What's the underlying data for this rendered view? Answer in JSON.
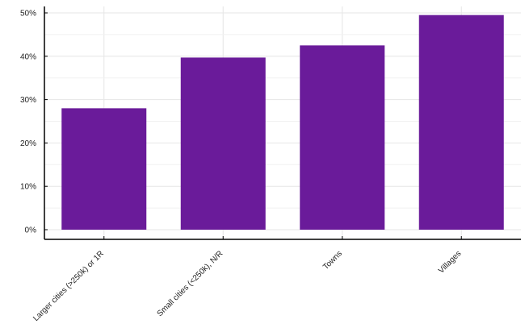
{
  "chart_data": {
    "type": "bar",
    "title": "",
    "xlabel": "",
    "ylabel": "",
    "categories": [
      "Larger cities (>250k) or 1R",
      "Small cities (<250k), N/R",
      "Towns",
      "Villages"
    ],
    "values": [
      0.28,
      0.397,
      0.425,
      0.495
    ],
    "ylim": [
      0,
      0.5
    ],
    "yticks": [
      0,
      0.1,
      0.2,
      0.3,
      0.4,
      0.5
    ],
    "ytick_labels": [
      "0%",
      "10%",
      "20%",
      "30%",
      "40%",
      "50%"
    ],
    "grid": true,
    "legend": "none",
    "colors": {
      "bar": "#6a1b9a",
      "grid": "#e6e6e6",
      "axis": "#000000"
    }
  }
}
